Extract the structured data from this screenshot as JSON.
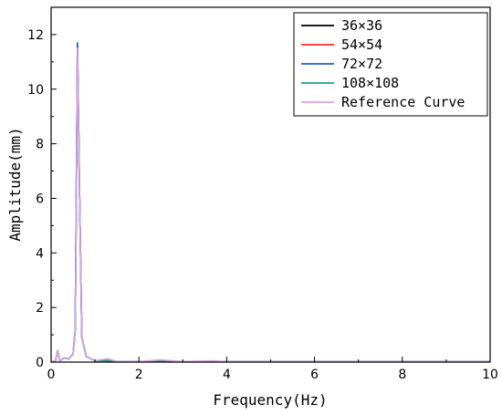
{
  "chart_data": {
    "type": "line",
    "title": "",
    "xlabel": "Frequency(Hz)",
    "ylabel": "Amplitude(mm)",
    "xlim": [
      0,
      10
    ],
    "ylim": [
      0,
      13
    ],
    "xticks": [
      "0",
      "2",
      "4",
      "6",
      "8",
      "10"
    ],
    "yticks": [
      "0",
      "2",
      "4",
      "6",
      "8",
      "10",
      "12"
    ],
    "grid": false,
    "legend_position": "top-right",
    "series": [
      {
        "name": "36×36",
        "color": "#000000",
        "x": [
          0,
          0.1,
          0.15,
          0.2,
          0.3,
          0.4,
          0.5,
          0.55,
          0.6,
          0.65,
          0.7,
          0.8,
          1.0,
          1.2,
          1.5,
          2.0,
          2.5,
          3.0,
          4.0,
          5.0,
          6.0,
          7.0,
          8.0,
          9.0,
          10.0
        ],
        "values": [
          0.0,
          0.05,
          0.42,
          0.05,
          0.15,
          0.12,
          0.3,
          1.2,
          11.6,
          6.0,
          0.9,
          0.2,
          0.05,
          0.06,
          0.02,
          0.02,
          0.02,
          0.01,
          0.01,
          0.01,
          0.01,
          0.01,
          0.01,
          0.01,
          0.01
        ]
      },
      {
        "name": "54×54",
        "color": "#ff2a2a",
        "x": [
          0,
          0.1,
          0.15,
          0.2,
          0.3,
          0.4,
          0.5,
          0.55,
          0.6,
          0.65,
          0.7,
          0.8,
          1.0,
          1.2,
          1.5,
          2.0,
          2.5,
          3.0,
          4.0,
          5.0,
          6.0,
          7.0,
          8.0,
          9.0,
          10.0
        ],
        "values": [
          0.0,
          0.05,
          0.42,
          0.05,
          0.15,
          0.12,
          0.3,
          1.2,
          11.65,
          6.0,
          0.9,
          0.2,
          0.05,
          0.06,
          0.02,
          0.02,
          0.02,
          0.01,
          0.01,
          0.01,
          0.01,
          0.01,
          0.01,
          0.01,
          0.01
        ]
      },
      {
        "name": "72×72",
        "color": "#1f5fd1",
        "x": [
          0,
          0.1,
          0.15,
          0.2,
          0.3,
          0.4,
          0.5,
          0.55,
          0.6,
          0.65,
          0.7,
          0.8,
          1.0,
          1.2,
          1.5,
          2.0,
          2.5,
          3.0,
          4.0,
          5.0,
          6.0,
          7.0,
          8.0,
          9.0,
          10.0
        ],
        "values": [
          0.0,
          0.05,
          0.42,
          0.05,
          0.15,
          0.12,
          0.3,
          1.2,
          11.7,
          6.0,
          0.9,
          0.2,
          0.05,
          0.06,
          0.02,
          0.02,
          0.02,
          0.01,
          0.01,
          0.01,
          0.01,
          0.01,
          0.01,
          0.01,
          0.01
        ]
      },
      {
        "name": "108×108",
        "color": "#23a07a",
        "x": [
          0,
          0.1,
          0.15,
          0.2,
          0.3,
          0.4,
          0.5,
          0.55,
          0.6,
          0.65,
          0.7,
          0.8,
          1.0,
          1.2,
          1.5,
          2.0,
          2.5,
          3.0,
          4.0,
          5.0,
          6.0,
          7.0,
          8.0,
          9.0,
          10.0
        ],
        "values": [
          0.0,
          0.05,
          0.42,
          0.05,
          0.15,
          0.12,
          0.3,
          1.2,
          11.0,
          6.0,
          0.9,
          0.2,
          0.05,
          0.06,
          0.02,
          0.02,
          0.02,
          0.01,
          0.01,
          0.01,
          0.01,
          0.01,
          0.01,
          0.01,
          0.01
        ]
      },
      {
        "name": "Reference Curve",
        "color": "#d8a3e6",
        "x": [
          0,
          0.1,
          0.15,
          0.2,
          0.3,
          0.4,
          0.5,
          0.55,
          0.6,
          0.65,
          0.7,
          0.8,
          1.0,
          1.2,
          1.3,
          1.5,
          2.0,
          2.5,
          3.0,
          3.7,
          4.0,
          5.0,
          6.0,
          7.0,
          8.0,
          9.0,
          10.0
        ],
        "values": [
          0.0,
          0.05,
          0.42,
          0.05,
          0.15,
          0.12,
          0.3,
          1.2,
          11.5,
          6.0,
          0.9,
          0.2,
          0.05,
          0.1,
          0.12,
          0.02,
          0.02,
          0.08,
          0.02,
          0.05,
          0.01,
          0.01,
          0.01,
          0.01,
          0.01,
          0.01,
          0.01
        ]
      }
    ]
  }
}
